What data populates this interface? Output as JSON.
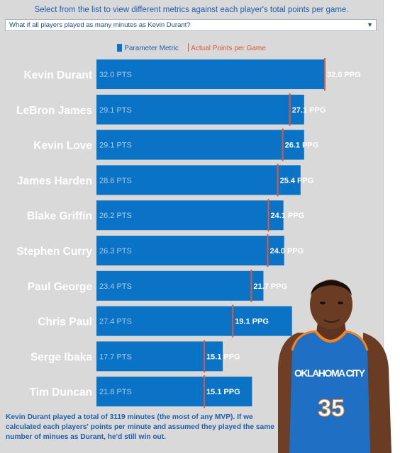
{
  "header": {
    "instruction": "Select from the list to view different metrics against each player's total points per game.",
    "dropdown_value": "What if all players played as many minutes as Kevin Durant?"
  },
  "legend": {
    "parameter_label": "Parameter Metric",
    "actual_label": "Actual Points per Game"
  },
  "footnote": "Kevin Durant played a total of 3119 minutes (the most of any MVP).  If we calculated each players' points per minute and assumed they played the same number of minues as Durant, he'd still win out.",
  "photo": {
    "jersey_team": "OKLAHOMA CITY",
    "jersey_number": "35"
  },
  "colors": {
    "bar": "#0a73c6",
    "marker": "#e0563c",
    "panel": "#d9d9d9"
  },
  "chart_data": {
    "type": "bar",
    "orientation": "horizontal",
    "title": "",
    "xlim": [
      0,
      32.0
    ],
    "categories": [
      "Kevin Durant",
      "LeBron James",
      "Kevin Love",
      "James Harden",
      "Blake Griffin",
      "Stephen Curry",
      "Paul George",
      "Chris Paul",
      "Serge Ibaka",
      "Tim Duncan"
    ],
    "series": [
      {
        "name": "Parameter Metric",
        "values": [
          32.0,
          29.1,
          29.1,
          28.6,
          26.2,
          26.3,
          23.4,
          27.4,
          17.7,
          21.8
        ],
        "labels": [
          "32.0 PTS",
          "29.1 PTS",
          "29.1 PTS",
          "28.6 PTS",
          "26.2 PTS",
          "26.3 PTS",
          "23.4 PTS",
          "27.4 PTS",
          "17.7 PTS",
          "21.8 PTS"
        ]
      },
      {
        "name": "Actual Points per Game",
        "values": [
          32.0,
          27.1,
          26.1,
          25.4,
          24.1,
          24.0,
          21.7,
          19.1,
          15.1,
          15.1
        ],
        "labels": [
          "32.0 PPG",
          "27.1 PPG",
          "26.1 PPG",
          "25.4 PPG",
          "24.1 PPG",
          "24.0 PPG",
          "21.7 PPG",
          "19.1 PPG",
          "15.1 PPG",
          "15.1 PPG"
        ]
      }
    ],
    "legend_position": "top-center",
    "grid": false
  }
}
